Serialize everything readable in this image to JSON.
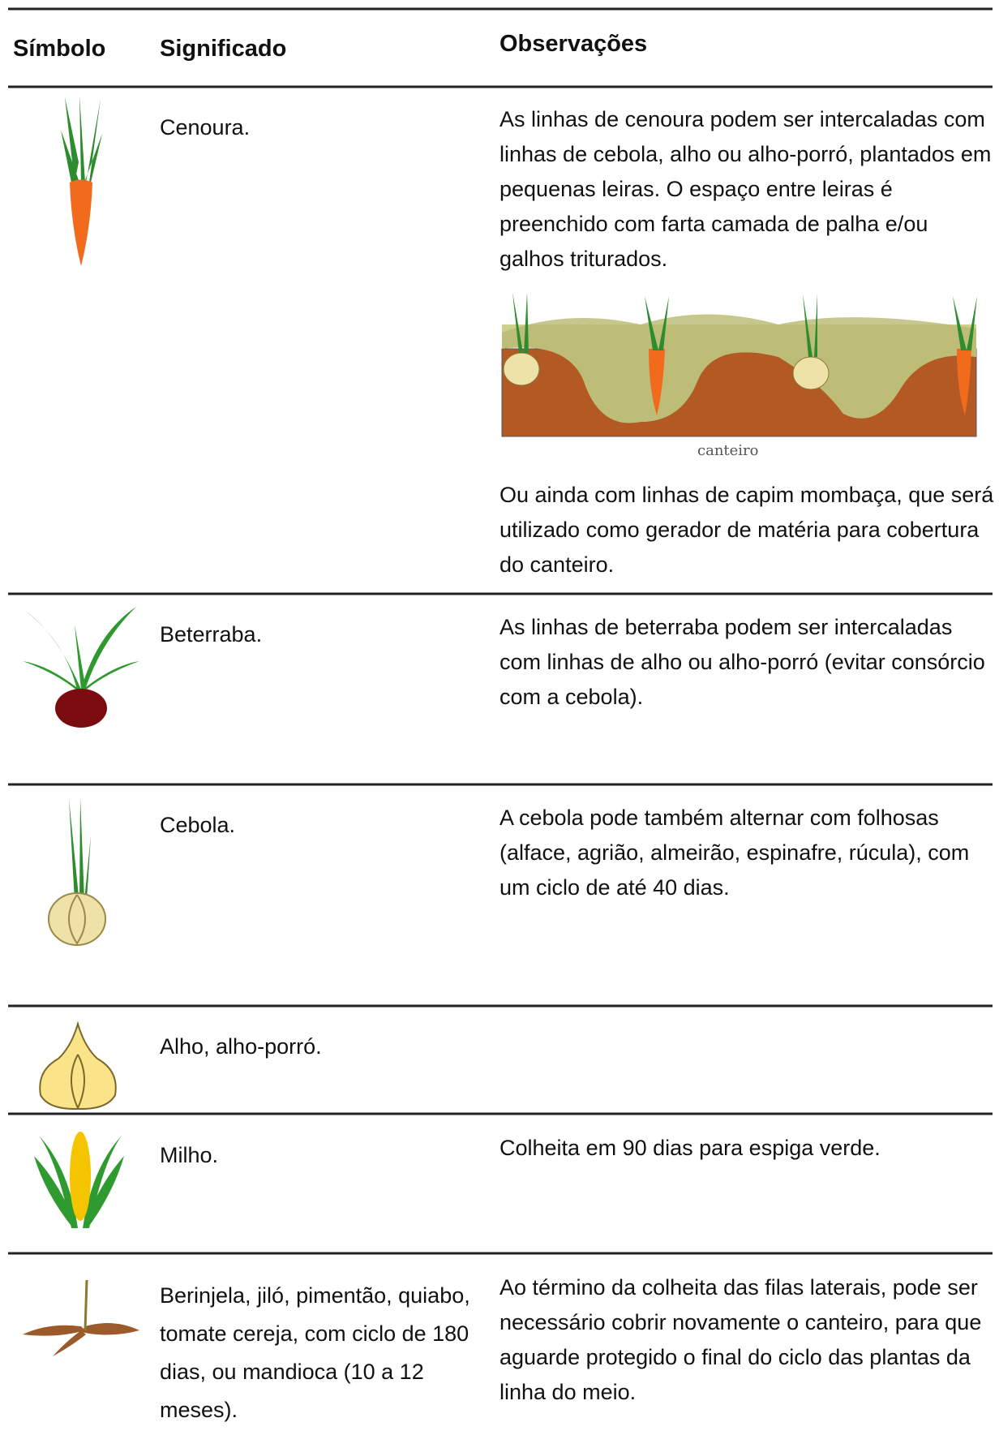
{
  "table": {
    "headers": [
      "Símbolo",
      "Significado",
      "Observações"
    ],
    "rows": [
      {
        "meaning": "Cenoura.",
        "notes": [
          "As linhas de cenoura podem ser intercaladas com linhas de cebola, alho ou alho-porró, plantados em pequenas leiras. O espaço entre leiras é preenchido com farta camada de palha e/ou galhos triturados.",
          "Ou ainda com linhas de capim mombaça, que será utilizado como gerador de matéria para cobertura do canteiro."
        ],
        "figure_caption": "canteiro"
      },
      {
        "meaning": "Beterraba.",
        "notes": [
          "As linhas de beterraba podem ser intercaladas com linhas de alho ou alho-porró (evitar consórcio com a cebola)."
        ]
      },
      {
        "meaning": "Cebola.",
        "notes": [
          "A cebola pode também alternar com folhosas (alface, agrião, almeirão, espinafre, rúcula), com um ciclo de até 40 dias."
        ]
      },
      {
        "meaning": "Alho, alho-porró."
      },
      {
        "meaning": "Milho.",
        "notes": [
          "Colheita em 90 dias para espiga verde."
        ]
      },
      {
        "meaning": "Berinjela, jiló, pimentão, quiabo, tomate cereja, com ciclo de 180 dias, ou mandioca (10 a 12 meses).",
        "notes": [
          "Ao término da colheita das filas laterais, pode ser necessário cobrir novamente o canteiro, para que aguarde protegido o final do ciclo das plantas da linha do meio."
        ]
      }
    ]
  }
}
